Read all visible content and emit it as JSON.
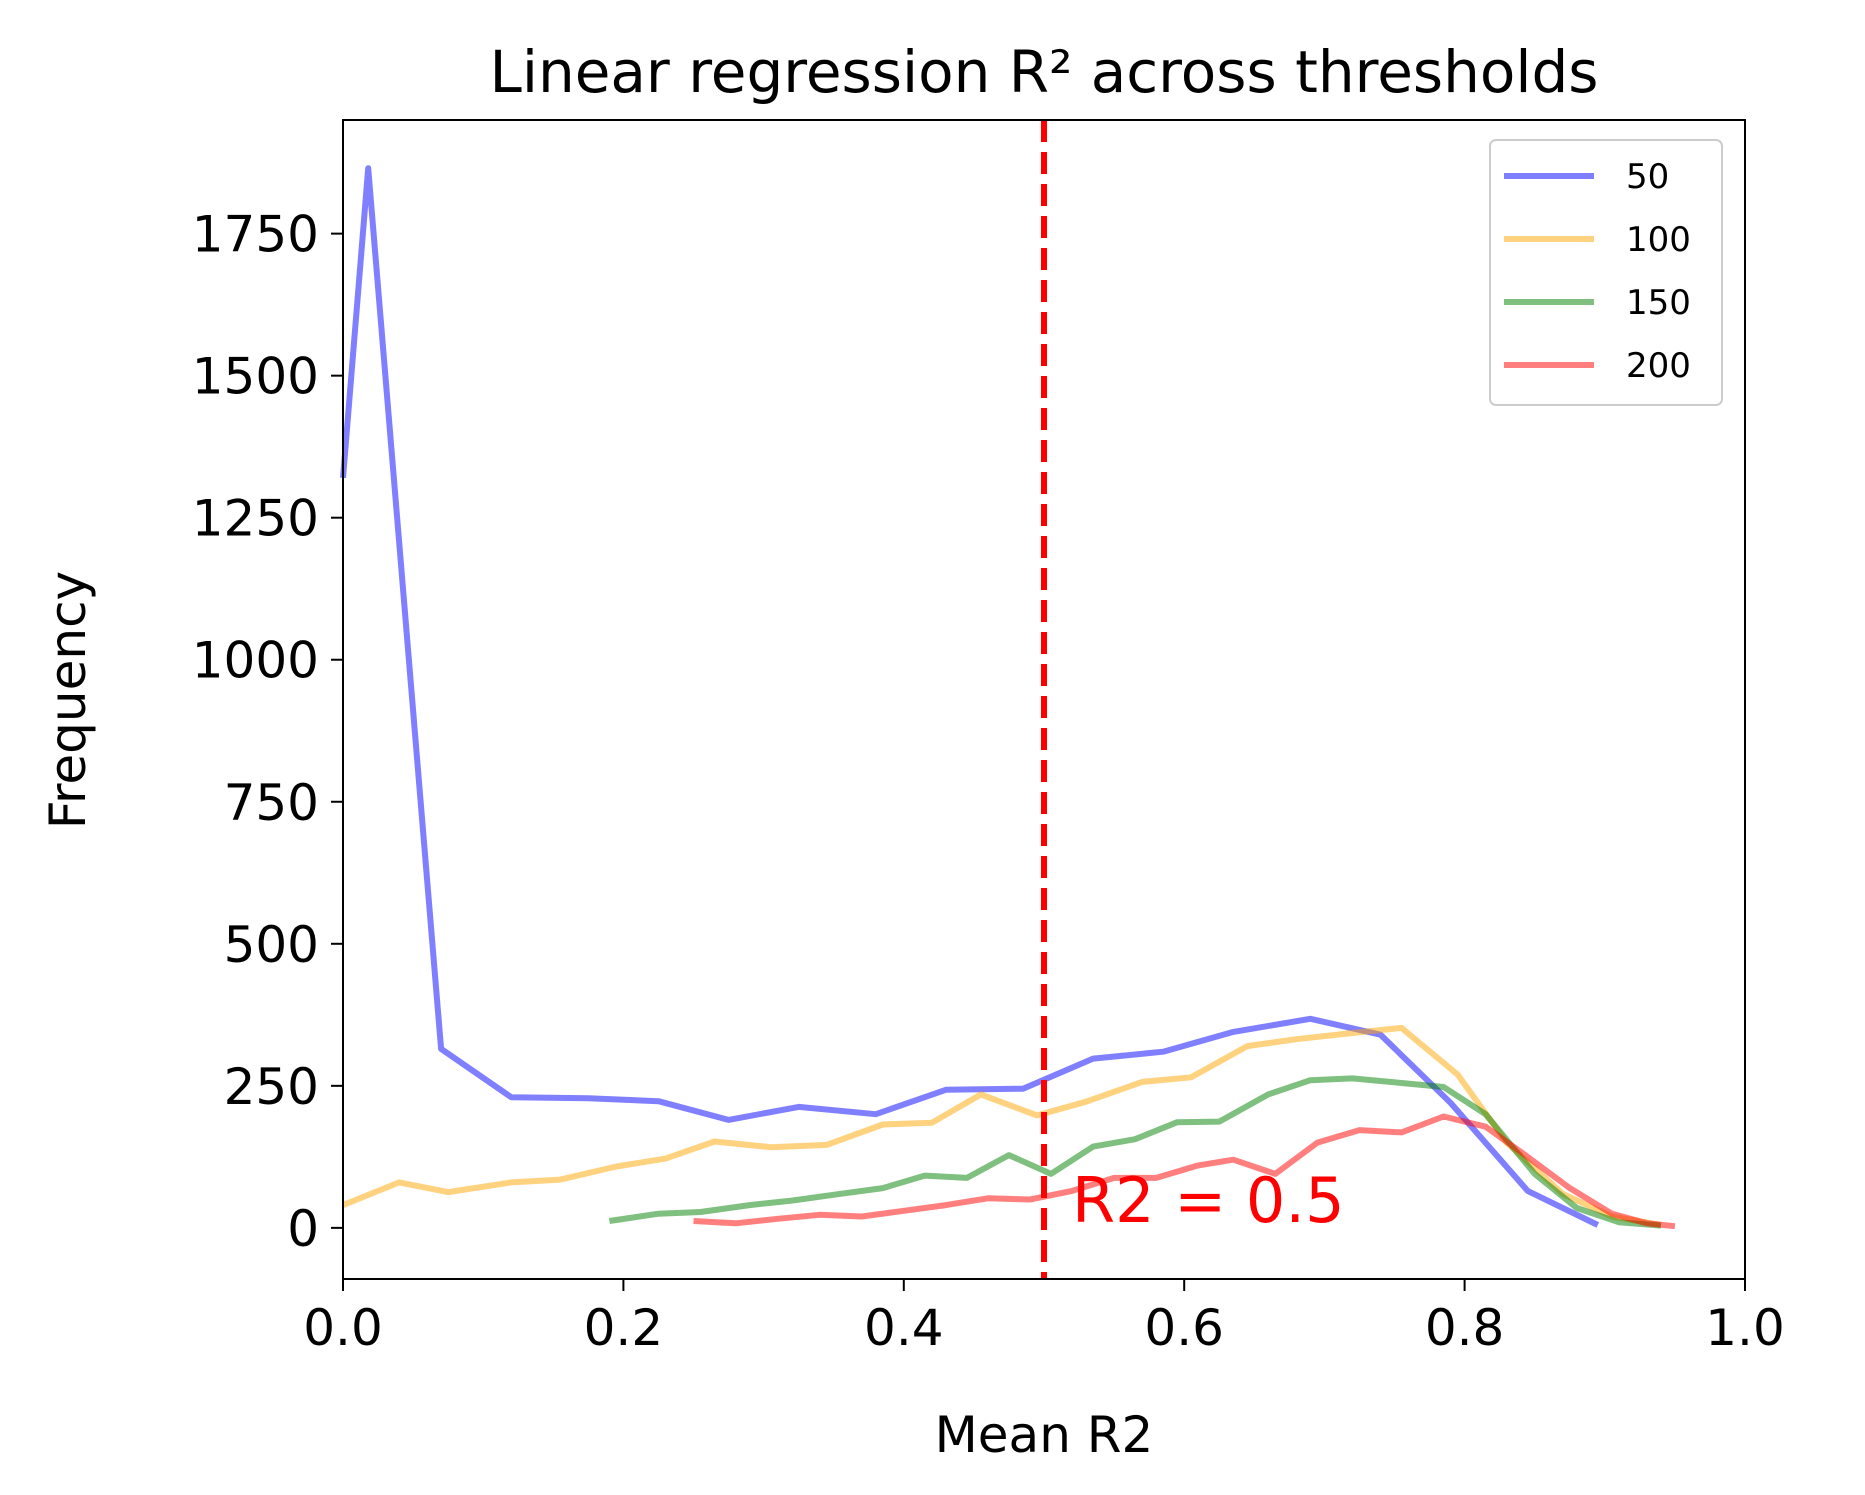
{
  "chart_data": {
    "type": "line",
    "title": "Linear regression R² across thresholds",
    "xlabel": "Mean R2",
    "ylabel": "Frequency",
    "xlim": [
      0.0,
      1.0
    ],
    "ylim": [
      -90,
      1950
    ],
    "xticks": [
      0.0,
      0.2,
      0.4,
      0.6,
      0.8,
      1.0
    ],
    "xtick_labels": [
      "0.0",
      "0.2",
      "0.4",
      "0.6",
      "0.8",
      "1.0"
    ],
    "yticks": [
      0,
      250,
      500,
      750,
      1000,
      1250,
      1500,
      1750
    ],
    "ytick_labels": [
      "0",
      "250",
      "500",
      "750",
      "1000",
      "1250",
      "1500",
      "1750"
    ],
    "grid": false,
    "legend_position": "top-right",
    "series": [
      {
        "name": "50",
        "color": "#0000ff",
        "x": [
          0.0,
          0.018,
          0.07,
          0.12,
          0.175,
          0.225,
          0.275,
          0.325,
          0.38,
          0.43,
          0.485,
          0.535,
          0.585,
          0.635,
          0.69,
          0.74,
          0.79,
          0.845,
          0.895
        ],
        "y": [
          1320,
          1865,
          315,
          230,
          228,
          223,
          190,
          213,
          200,
          243,
          245,
          298,
          310,
          345,
          368,
          340,
          220,
          65,
          5
        ]
      },
      {
        "name": "100",
        "color": "#ffa500",
        "x": [
          0.0,
          0.04,
          0.075,
          0.12,
          0.155,
          0.195,
          0.23,
          0.265,
          0.305,
          0.345,
          0.385,
          0.42,
          0.455,
          0.495,
          0.53,
          0.57,
          0.605,
          0.645,
          0.68,
          0.72,
          0.755,
          0.795,
          0.83,
          0.87,
          0.905,
          0.94
        ],
        "y": [
          40,
          80,
          63,
          80,
          85,
          108,
          122,
          152,
          142,
          146,
          182,
          185,
          235,
          198,
          222,
          257,
          265,
          320,
          332,
          343,
          352,
          270,
          150,
          60,
          20,
          5
        ]
      },
      {
        "name": "150",
        "color": "#008000",
        "x": [
          0.19,
          0.225,
          0.255,
          0.29,
          0.32,
          0.355,
          0.385,
          0.415,
          0.445,
          0.475,
          0.505,
          0.535,
          0.565,
          0.595,
          0.625,
          0.66,
          0.69,
          0.72,
          0.755,
          0.785,
          0.815,
          0.85,
          0.88,
          0.91,
          0.94
        ],
        "y": [
          12,
          25,
          28,
          40,
          48,
          60,
          70,
          92,
          88,
          128,
          95,
          143,
          156,
          186,
          187,
          235,
          260,
          263,
          255,
          248,
          200,
          95,
          35,
          10,
          4
        ]
      },
      {
        "name": "200",
        "color": "#ff0000",
        "x": [
          0.25,
          0.28,
          0.31,
          0.34,
          0.37,
          0.4,
          0.43,
          0.46,
          0.49,
          0.52,
          0.55,
          0.58,
          0.61,
          0.635,
          0.665,
          0.695,
          0.725,
          0.755,
          0.785,
          0.815,
          0.845,
          0.875,
          0.905,
          0.93,
          0.95
        ],
        "y": [
          12,
          8,
          16,
          23,
          20,
          30,
          40,
          52,
          50,
          65,
          88,
          88,
          110,
          120,
          95,
          150,
          172,
          168,
          196,
          178,
          125,
          70,
          25,
          8,
          3
        ]
      }
    ],
    "reference_line": {
      "x": 0.5,
      "color": "#ff0000",
      "style": "dashed"
    },
    "annotations": [
      {
        "text": "R2 = 0.5",
        "x": 0.52,
        "y": 10,
        "color": "#ff0000"
      }
    ]
  }
}
